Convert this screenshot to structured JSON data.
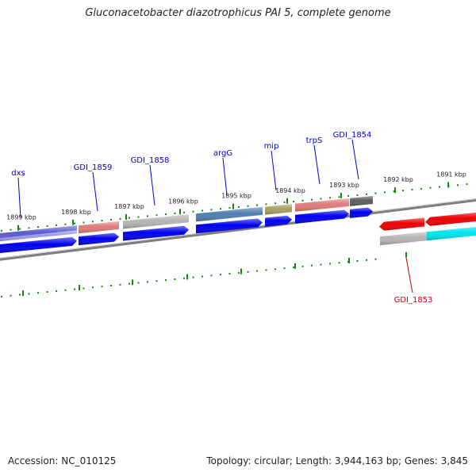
{
  "title": "Gluconacetobacter diazotrophicus PAI 5, complete genome",
  "footer": {
    "accession": "Accession: NC_010125",
    "summary": "Topology: circular; Length: 3,944,163 bp; Genes: 3,845"
  },
  "colors": {
    "backbone": "#7f7f7f",
    "ticks": "#118811",
    "forward_label": "#0000cc",
    "reverse_label": "#cc0000",
    "cds_forward": "#0000ee",
    "cds_reverse": "#ee0000",
    "rna": "#00e5ee"
  },
  "scale": {
    "ticks": [
      {
        "label": "1899 kbp",
        "kbp": 1899
      },
      {
        "label": "1898 kbp",
        "kbp": 1898
      },
      {
        "label": "1897 kbp",
        "kbp": 1897
      },
      {
        "label": "1896 kbp",
        "kbp": 1896
      },
      {
        "label": "1895 kbp",
        "kbp": 1895
      },
      {
        "label": "1894 kbp",
        "kbp": 1894
      },
      {
        "label": "1893 kbp",
        "kbp": 1893
      },
      {
        "label": "1892 kbp",
        "kbp": 1892
      },
      {
        "label": "1891 kbp",
        "kbp": 1891
      }
    ]
  },
  "genes": [
    {
      "name": "dxs",
      "strand": "forward",
      "color": "#5a5ad0"
    },
    {
      "name": "GDI_1859",
      "strand": "forward",
      "color": "#e07a7a"
    },
    {
      "name": "GDI_1858",
      "strand": "forward",
      "color": "#b4b4b4"
    },
    {
      "name": "argG",
      "strand": "forward",
      "color": "#4f7fb0"
    },
    {
      "name": "mip",
      "strand": "forward",
      "color": "#a8a060"
    },
    {
      "name": "trpS",
      "strand": "forward",
      "color": "#e07a7a"
    },
    {
      "name": "GDI_1854",
      "strand": "forward",
      "color": "#5c5c5c"
    },
    {
      "name": "GDI_1853",
      "strand": "reverse",
      "color": "#b4b4b4"
    }
  ]
}
